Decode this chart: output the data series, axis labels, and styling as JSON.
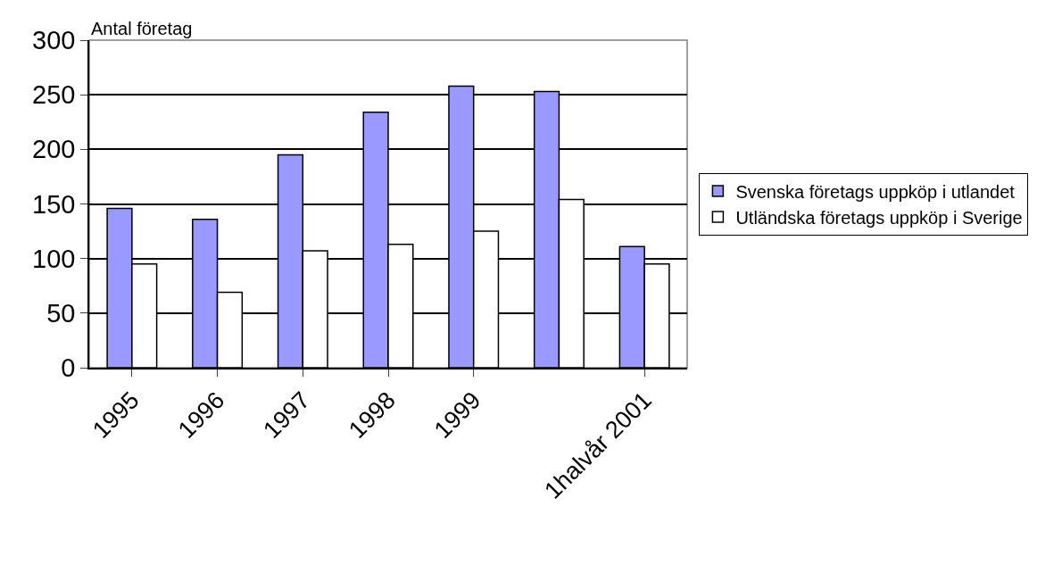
{
  "chart_data": {
    "type": "bar",
    "ylabel": "Antal företag",
    "categories": [
      "1995",
      "1996",
      "1997",
      "1998",
      "1999",
      null,
      "1halvår 2001"
    ],
    "series": [
      {
        "name": "Svenska företags uppköp i utlandet",
        "color": "#9999ff",
        "values": [
          146,
          136,
          195,
          234,
          258,
          253,
          111
        ]
      },
      {
        "name": "Utländska företags uppköp i Sverige",
        "color": "#ffffff",
        "values": [
          95,
          69,
          107,
          113,
          125,
          154,
          95
        ]
      }
    ],
    "ylim": [
      0,
      300
    ],
    "yticks": [
      0,
      50,
      100,
      150,
      200,
      250,
      300
    ],
    "grid": "y",
    "legend": "right"
  }
}
